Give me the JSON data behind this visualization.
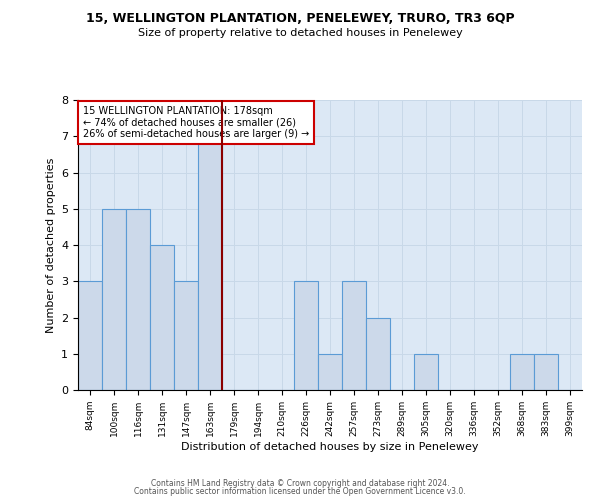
{
  "title": "15, WELLINGTON PLANTATION, PENELEWEY, TRURO, TR3 6QP",
  "subtitle": "Size of property relative to detached houses in Penelewey",
  "xlabel": "Distribution of detached houses by size in Penelewey",
  "ylabel": "Number of detached properties",
  "bins": [
    "84sqm",
    "100sqm",
    "116sqm",
    "131sqm",
    "147sqm",
    "163sqm",
    "179sqm",
    "194sqm",
    "210sqm",
    "226sqm",
    "242sqm",
    "257sqm",
    "273sqm",
    "289sqm",
    "305sqm",
    "320sqm",
    "336sqm",
    "352sqm",
    "368sqm",
    "383sqm",
    "399sqm"
  ],
  "counts": [
    3,
    5,
    5,
    4,
    3,
    7,
    0,
    0,
    0,
    3,
    1,
    3,
    2,
    0,
    1,
    0,
    0,
    0,
    1,
    1,
    0
  ],
  "bar_color": "#ccd9ea",
  "bar_edge_color": "#5b9bd5",
  "red_line_index": 6,
  "red_line_color": "#8b0000",
  "ylim": [
    0,
    8
  ],
  "yticks": [
    0,
    1,
    2,
    3,
    4,
    5,
    6,
    7,
    8
  ],
  "grid_color": "#c8d8e8",
  "background_color": "#dce8f5",
  "annotation_title": "15 WELLINGTON PLANTATION: 178sqm",
  "annotation_line1": "← 74% of detached houses are smaller (26)",
  "annotation_line2": "26% of semi-detached houses are larger (9) →",
  "footer1": "Contains HM Land Registry data © Crown copyright and database right 2024.",
  "footer2": "Contains public sector information licensed under the Open Government Licence v3.0."
}
